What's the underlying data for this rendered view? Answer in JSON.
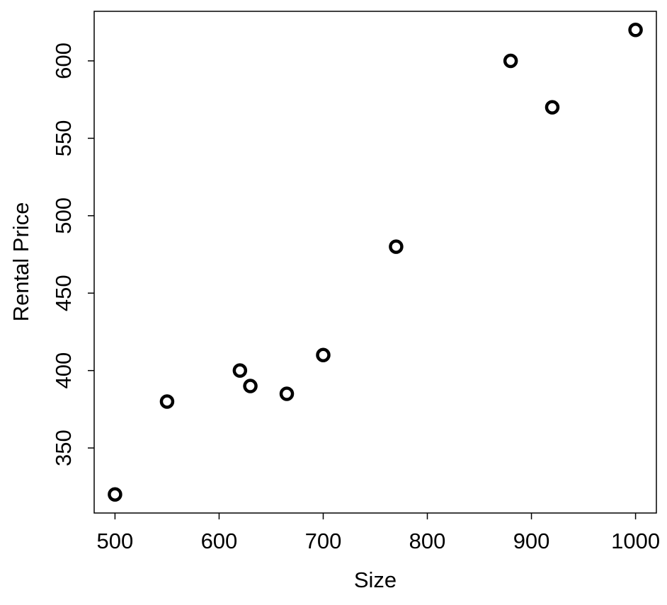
{
  "chart_data": {
    "type": "scatter",
    "xlabel": "Size",
    "ylabel": "Rental Price",
    "x": [
      500,
      550,
      620,
      630,
      665,
      700,
      770,
      880,
      920,
      1000
    ],
    "values": [
      320,
      380,
      400,
      390,
      385,
      410,
      480,
      600,
      570,
      620
    ],
    "color": "#000000",
    "xlim": [
      480,
      1020
    ],
    "xticks": [
      500,
      600,
      700,
      800,
      900,
      1000
    ],
    "ylim": [
      308,
      632
    ],
    "yticks": [
      350,
      400,
      450,
      500,
      550,
      600
    ],
    "grid": false
  }
}
